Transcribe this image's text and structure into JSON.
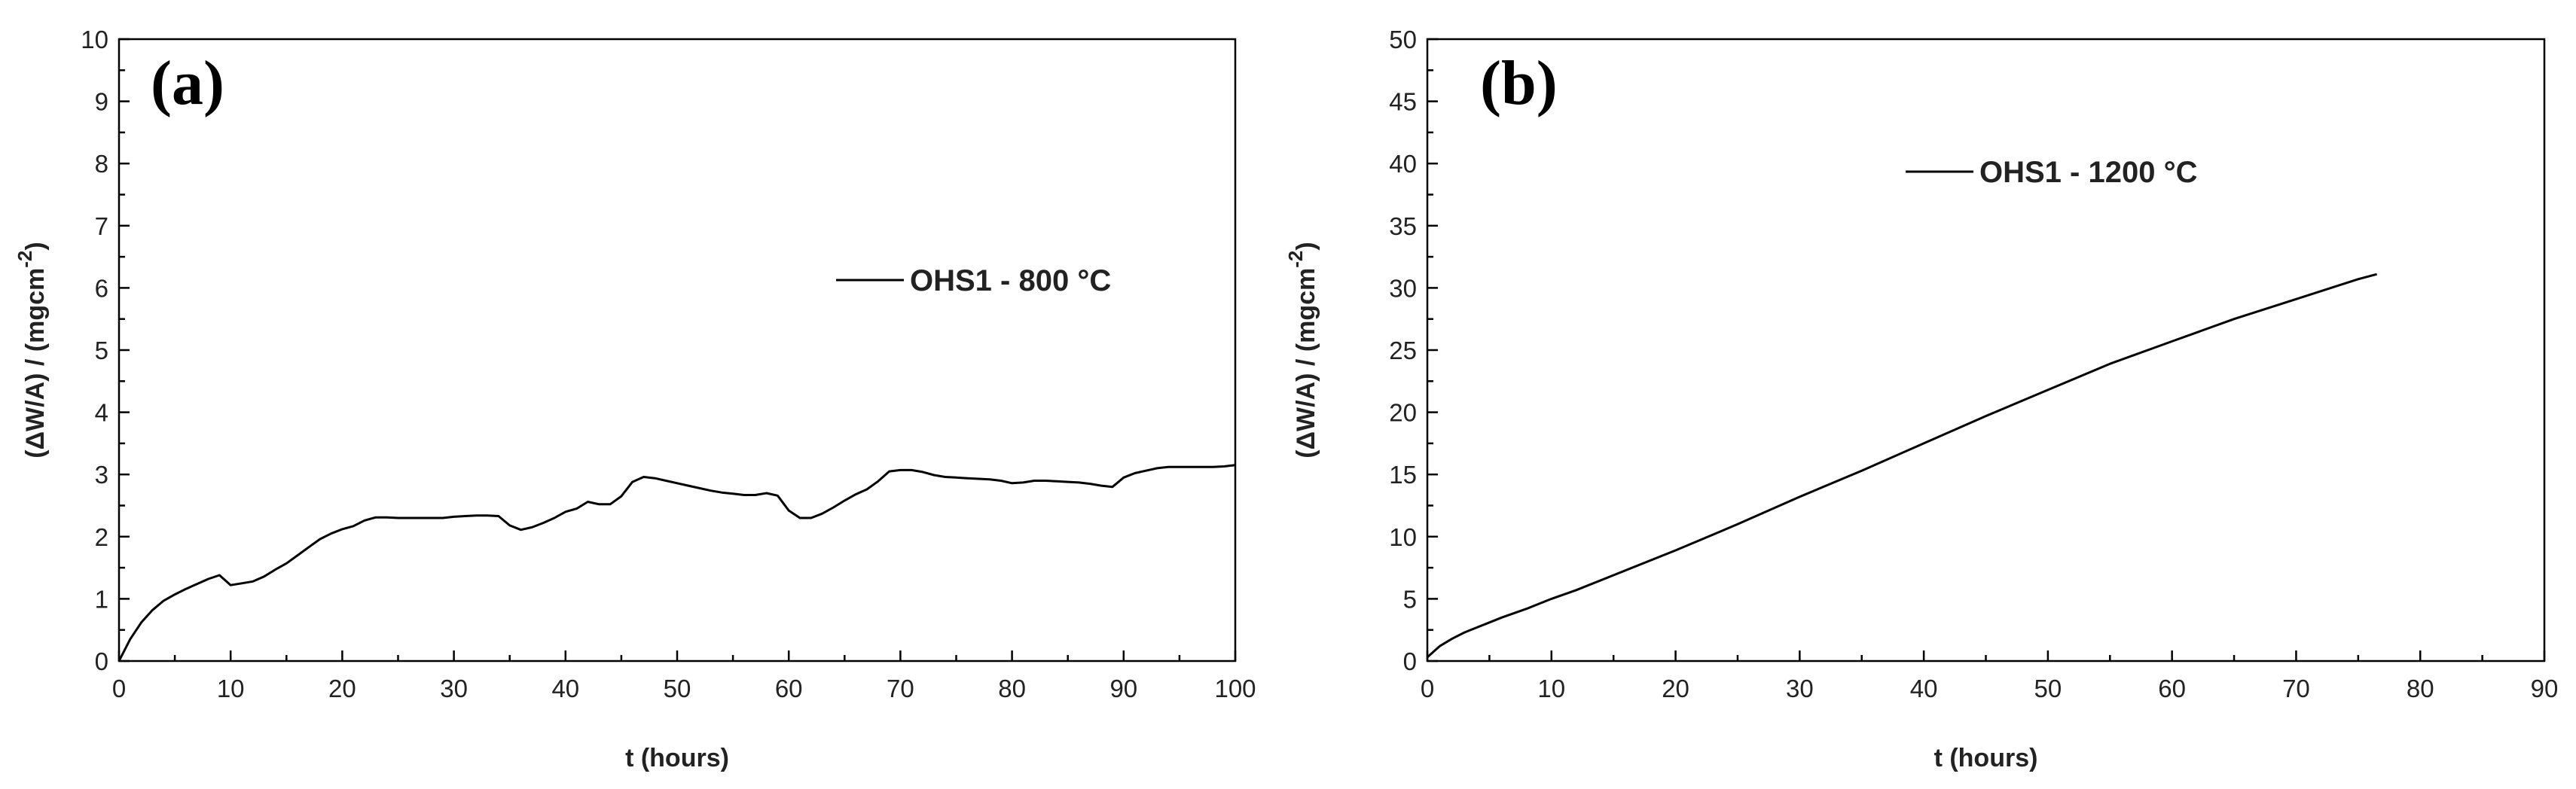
{
  "chart_data": [
    {
      "type": "line",
      "panel_label": "a",
      "title": "",
      "xlabel": "t (hours)",
      "ylabel": "(ΔW/A)   /   (mgcm",
      "ylabel_sup": "-2",
      "ylabel_close": ")",
      "xlim": [
        0,
        100
      ],
      "ylim": [
        0,
        10
      ],
      "xticks": [
        0,
        10,
        20,
        30,
        40,
        50,
        60,
        70,
        80,
        90,
        100
      ],
      "yticks": [
        0,
        1,
        2,
        3,
        4,
        5,
        6,
        7,
        8,
        9,
        10
      ],
      "grid": false,
      "legend_position": "middle-right",
      "series": [
        {
          "name": "OHS1 - 800 °C",
          "x": [
            0,
            1,
            2,
            3,
            4,
            5,
            6,
            7,
            8,
            9,
            10,
            11,
            12,
            13,
            14,
            15,
            16,
            17,
            18,
            19,
            20,
            21,
            22,
            23,
            24,
            25,
            26,
            27,
            28,
            29,
            30,
            31,
            32,
            33,
            34,
            35,
            36,
            37,
            38,
            39,
            40,
            41,
            42,
            43,
            44,
            45,
            46,
            47,
            48,
            49,
            50,
            51,
            52,
            53,
            54,
            55,
            56,
            57,
            58,
            59,
            60,
            61,
            62,
            63,
            64,
            65,
            66,
            67,
            68,
            69,
            70,
            71,
            72,
            73,
            74,
            75,
            76,
            77,
            78,
            79,
            80,
            81,
            82,
            83,
            84,
            85,
            86,
            87,
            88,
            89,
            90,
            91,
            92,
            93,
            94,
            95,
            96,
            97,
            98,
            99,
            100
          ],
          "y": [
            0.0,
            0.35,
            0.62,
            0.82,
            0.97,
            1.07,
            1.16,
            1.24,
            1.32,
            1.38,
            1.22,
            1.25,
            1.28,
            1.36,
            1.47,
            1.57,
            1.7,
            1.83,
            1.96,
            2.05,
            2.12,
            2.17,
            2.26,
            2.31,
            2.31,
            2.3,
            2.3,
            2.3,
            2.3,
            2.3,
            2.32,
            2.33,
            2.34,
            2.34,
            2.33,
            2.18,
            2.11,
            2.15,
            2.22,
            2.3,
            2.4,
            2.45,
            2.56,
            2.52,
            2.52,
            2.65,
            2.88,
            2.96,
            2.94,
            2.9,
            2.86,
            2.82,
            2.78,
            2.74,
            2.71,
            2.69,
            2.67,
            2.67,
            2.7,
            2.66,
            2.42,
            2.3,
            2.3,
            2.37,
            2.47,
            2.58,
            2.68,
            2.76,
            2.89,
            3.05,
            3.07,
            3.07,
            3.04,
            2.99,
            2.96,
            2.95,
            2.94,
            2.93,
            2.92,
            2.9,
            2.86,
            2.87,
            2.9,
            2.9,
            2.89,
            2.88,
            2.87,
            2.85,
            2.82,
            2.8,
            2.95,
            3.02,
            3.06,
            3.1,
            3.12,
            3.12,
            3.12,
            3.12,
            3.12,
            3.13,
            3.15
          ]
        }
      ]
    },
    {
      "type": "line",
      "panel_label": "b",
      "title": "",
      "xlabel": "t (hours)",
      "ylabel": "(ΔW/A)   /   (mgcm",
      "ylabel_sup": "-2",
      "ylabel_close": ")",
      "xlim": [
        0,
        90
      ],
      "ylim": [
        0,
        50
      ],
      "xticks": [
        0,
        10,
        20,
        30,
        40,
        50,
        60,
        70,
        80,
        90
      ],
      "yticks": [
        0,
        5,
        10,
        15,
        20,
        25,
        30,
        35,
        40,
        45,
        50
      ],
      "grid": false,
      "legend_position": "top-center",
      "series": [
        {
          "name": "OHS1 - 1200 °C",
          "x": [
            0,
            1,
            2,
            3,
            4,
            5,
            6,
            8,
            10,
            12,
            15,
            20,
            25,
            30,
            35,
            40,
            45,
            50,
            55,
            60,
            65,
            70,
            75,
            76.5
          ],
          "y": [
            0.3,
            1.2,
            1.8,
            2.3,
            2.7,
            3.1,
            3.5,
            4.2,
            5.0,
            5.7,
            6.9,
            8.9,
            11.0,
            13.2,
            15.3,
            17.5,
            19.7,
            21.8,
            23.9,
            25.7,
            27.5,
            29.1,
            30.7,
            31.1
          ]
        }
      ]
    }
  ]
}
